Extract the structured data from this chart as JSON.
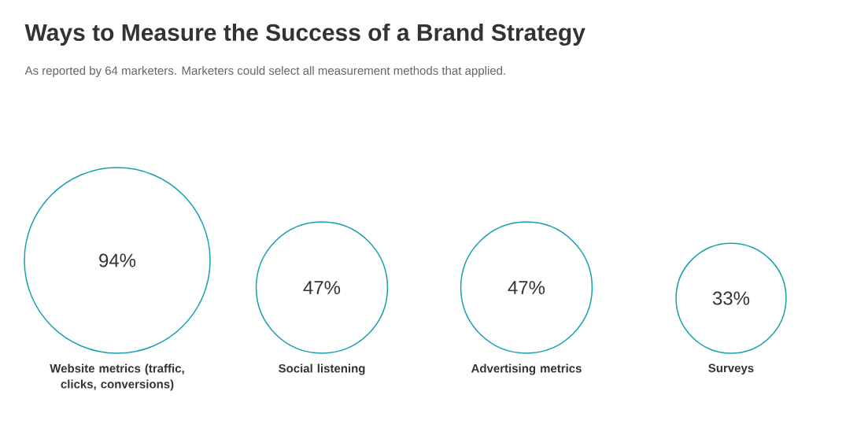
{
  "chart_data": {
    "type": "other",
    "title": "Ways to Measure the Success of a Brand Strategy",
    "subtitle": "As reported by 64 marketers. Marketers could select all measurement methods that applied.",
    "categories": [
      "Website metrics (traffic, clicks, conversions)",
      "Social listening",
      "Advertising metrics",
      "Surveys"
    ],
    "values": [
      94,
      47,
      47,
      33
    ],
    "value_labels": [
      "94%",
      "47%",
      "47%",
      "33%"
    ],
    "color": "#16a0ad"
  }
}
